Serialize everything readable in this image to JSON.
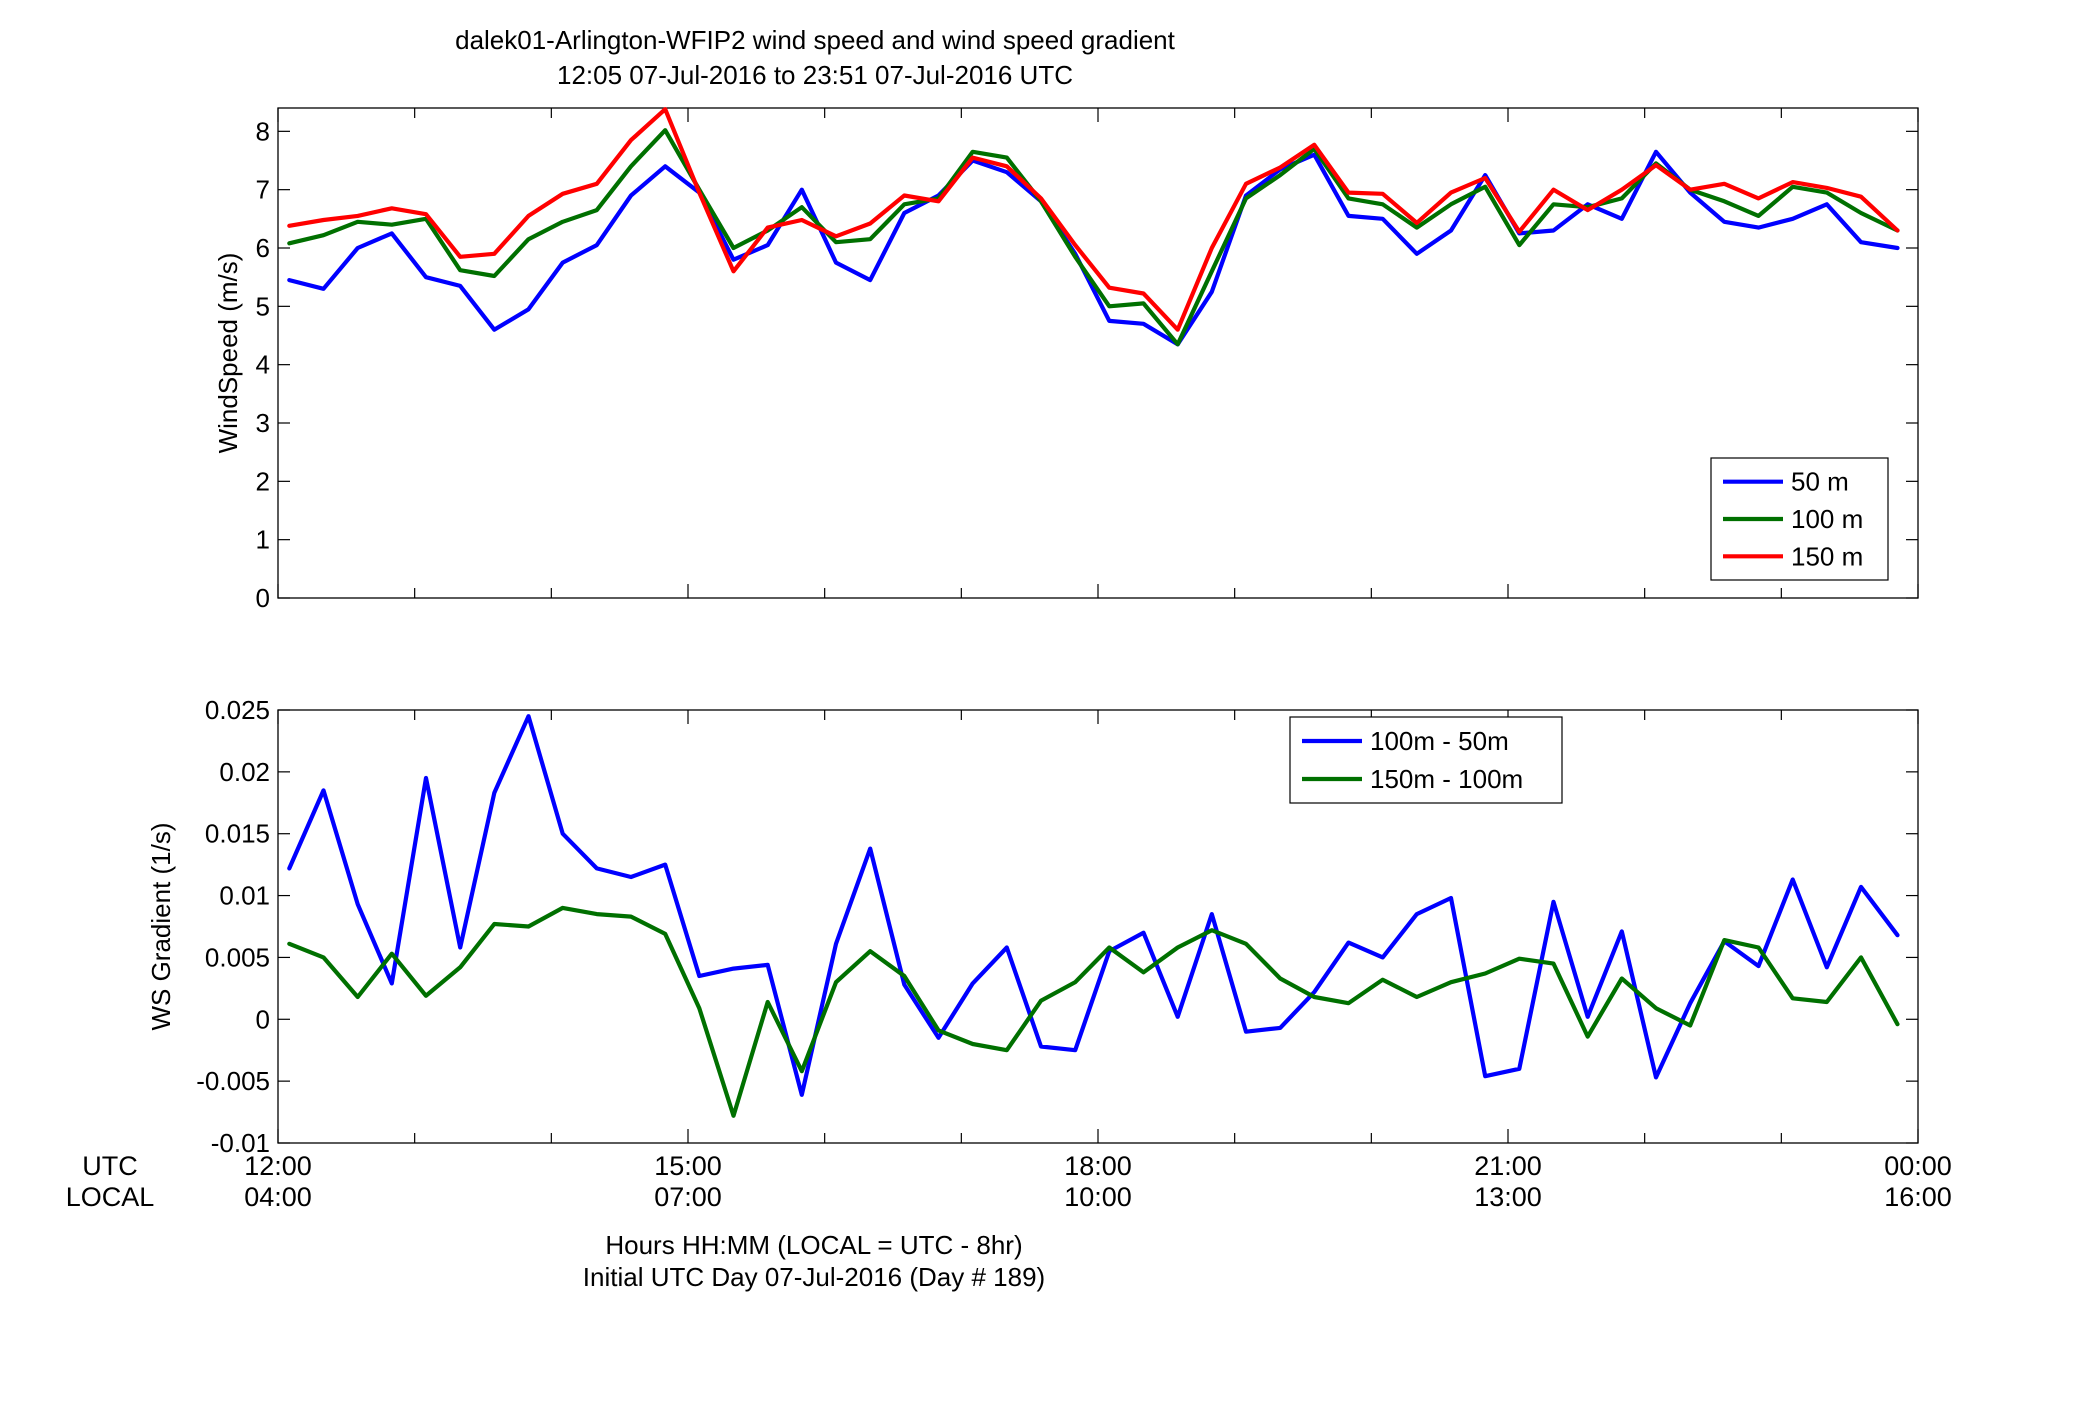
{
  "figure": {
    "title_line1": "dalek01-Arlington-WFIP2  wind speed and wind speed gradient",
    "title_line2": "12:05 07-Jul-2016 to 23:51 07-Jul-2016  UTC",
    "row_label_utc": "UTC",
    "row_label_local": "LOCAL",
    "xlabel_line1": "Hours HH:MM  (LOCAL = UTC - 8hr)",
    "xlabel_line2": "Initial UTC Day 07-Jul-2016 (Day # 189)",
    "utc_ticks": [
      "12:00",
      "15:00",
      "18:00",
      "21:00",
      "00:00"
    ],
    "local_ticks": [
      "04:00",
      "07:00",
      "10:00",
      "13:00",
      "16:00"
    ]
  },
  "chart_data": [
    {
      "type": "line",
      "ylabel": "WindSpeed (m/s)",
      "xlim": [
        12.0,
        24.0
      ],
      "ylim": [
        0,
        8.4
      ],
      "yticks": [
        0,
        1,
        2,
        3,
        4,
        5,
        6,
        7,
        8
      ],
      "legend_position": "bottom-right",
      "x_hours_utc": [
        12.083,
        12.333,
        12.583,
        12.833,
        13.083,
        13.333,
        13.583,
        13.833,
        14.083,
        14.333,
        14.583,
        14.833,
        15.083,
        15.333,
        15.583,
        15.833,
        16.083,
        16.333,
        16.583,
        16.833,
        17.083,
        17.333,
        17.583,
        17.833,
        18.083,
        18.333,
        18.583,
        18.833,
        19.083,
        19.333,
        19.583,
        19.833,
        20.083,
        20.333,
        20.583,
        20.833,
        21.083,
        21.333,
        21.583,
        21.833,
        22.083,
        22.333,
        22.583,
        22.833,
        23.083,
        23.333,
        23.583,
        23.85
      ],
      "series": [
        {
          "name": "50 m",
          "color": "#0000ff",
          "values": [
            5.45,
            5.3,
            6.0,
            6.25,
            5.5,
            5.35,
            4.6,
            4.95,
            5.75,
            6.05,
            6.9,
            7.4,
            6.95,
            5.8,
            6.05,
            7.0,
            5.75,
            5.45,
            6.6,
            6.9,
            7.5,
            7.3,
            6.8,
            5.9,
            4.75,
            4.7,
            4.35,
            5.25,
            6.9,
            7.35,
            7.6,
            6.55,
            6.5,
            5.9,
            6.3,
            7.25,
            6.25,
            6.3,
            6.75,
            6.5,
            7.65,
            6.95,
            6.45,
            6.35,
            6.5,
            6.75,
            6.1,
            6.0
          ]
        },
        {
          "name": "100 m",
          "color": "#007000",
          "values": [
            6.08,
            6.22,
            6.45,
            6.4,
            6.5,
            5.62,
            5.52,
            6.15,
            6.45,
            6.65,
            7.4,
            8.02,
            7.0,
            6.0,
            6.3,
            6.7,
            6.1,
            6.15,
            6.75,
            6.85,
            7.65,
            7.55,
            6.8,
            5.85,
            5.0,
            5.05,
            4.35,
            5.6,
            6.85,
            7.25,
            7.7,
            6.85,
            6.75,
            6.35,
            6.75,
            7.05,
            6.05,
            6.75,
            6.7,
            6.85,
            7.45,
            7.0,
            6.8,
            6.55,
            7.05,
            6.95,
            6.6,
            6.3
          ]
        },
        {
          "name": "150 m",
          "color": "#ff0000",
          "values": [
            6.38,
            6.48,
            6.55,
            6.68,
            6.58,
            5.85,
            5.9,
            6.55,
            6.93,
            7.1,
            7.85,
            8.38,
            6.95,
            5.6,
            6.35,
            6.48,
            6.2,
            6.42,
            6.9,
            6.8,
            7.55,
            7.4,
            6.85,
            6.05,
            5.32,
            5.22,
            4.6,
            6.0,
            7.1,
            7.38,
            7.77,
            6.95,
            6.93,
            6.43,
            6.95,
            7.2,
            6.28,
            7.0,
            6.65,
            7.0,
            7.42,
            7.0,
            7.1,
            6.85,
            7.13,
            7.03,
            6.88,
            6.3
          ]
        }
      ]
    },
    {
      "type": "line",
      "ylabel": "WS Gradient (1/s)",
      "xlim": [
        12.0,
        24.0
      ],
      "ylim": [
        -0.01,
        0.025
      ],
      "yticks": [
        -0.01,
        -0.005,
        0,
        0.005,
        0.01,
        0.015,
        0.02,
        0.025
      ],
      "ytick_labels": [
        "-0.01",
        "-0.005",
        "0",
        "0.005",
        "0.01",
        "0.015",
        "0.02",
        "0.025"
      ],
      "legend_position": "top-right",
      "x_hours_utc": [
        12.083,
        12.333,
        12.583,
        12.833,
        13.083,
        13.333,
        13.583,
        13.833,
        14.083,
        14.333,
        14.583,
        14.833,
        15.083,
        15.333,
        15.583,
        15.833,
        16.083,
        16.333,
        16.583,
        16.833,
        17.083,
        17.333,
        17.583,
        17.833,
        18.083,
        18.333,
        18.583,
        18.833,
        19.083,
        19.333,
        19.583,
        19.833,
        20.083,
        20.333,
        20.583,
        20.833,
        21.083,
        21.333,
        21.583,
        21.833,
        22.083,
        22.333,
        22.583,
        22.833,
        23.083,
        23.333,
        23.583,
        23.85
      ],
      "series": [
        {
          "name": "100m - 50m",
          "color": "#0000ff",
          "values": [
            0.0122,
            0.0185,
            0.0093,
            0.0029,
            0.0195,
            0.0058,
            0.0183,
            0.0245,
            0.015,
            0.0122,
            0.0115,
            0.0125,
            0.0035,
            0.0041,
            0.0044,
            -0.0061,
            0.0061,
            0.0138,
            0.0028,
            -0.0015,
            0.0029,
            0.0058,
            -0.0022,
            -0.0025,
            0.0055,
            0.007,
            0.0002,
            0.0085,
            -0.001,
            -0.0007,
            0.0022,
            0.0062,
            0.005,
            0.0085,
            0.0098,
            -0.0046,
            -0.004,
            0.0095,
            0.0002,
            0.0071,
            -0.0047,
            0.0013,
            0.0063,
            0.0043,
            0.0113,
            0.0042,
            0.0107,
            0.0068
          ]
        },
        {
          "name": "150m - 100m",
          "color": "#007000",
          "values": [
            0.0061,
            0.005,
            0.0018,
            0.0053,
            0.0019,
            0.0042,
            0.0077,
            0.0075,
            0.009,
            0.0085,
            0.0083,
            0.0069,
            0.0009,
            -0.0078,
            0.0014,
            -0.0042,
            0.003,
            0.0055,
            0.0035,
            -0.0009,
            -0.002,
            -0.0025,
            0.0015,
            0.003,
            0.0058,
            0.0038,
            0.0058,
            0.0072,
            0.0061,
            0.0033,
            0.0018,
            0.0013,
            0.0032,
            0.0018,
            0.003,
            0.0037,
            0.0049,
            0.0045,
            -0.0014,
            0.0033,
            0.0009,
            -0.0005,
            0.0064,
            0.0058,
            0.0017,
            0.0014,
            0.005,
            -0.0004
          ]
        }
      ]
    }
  ]
}
